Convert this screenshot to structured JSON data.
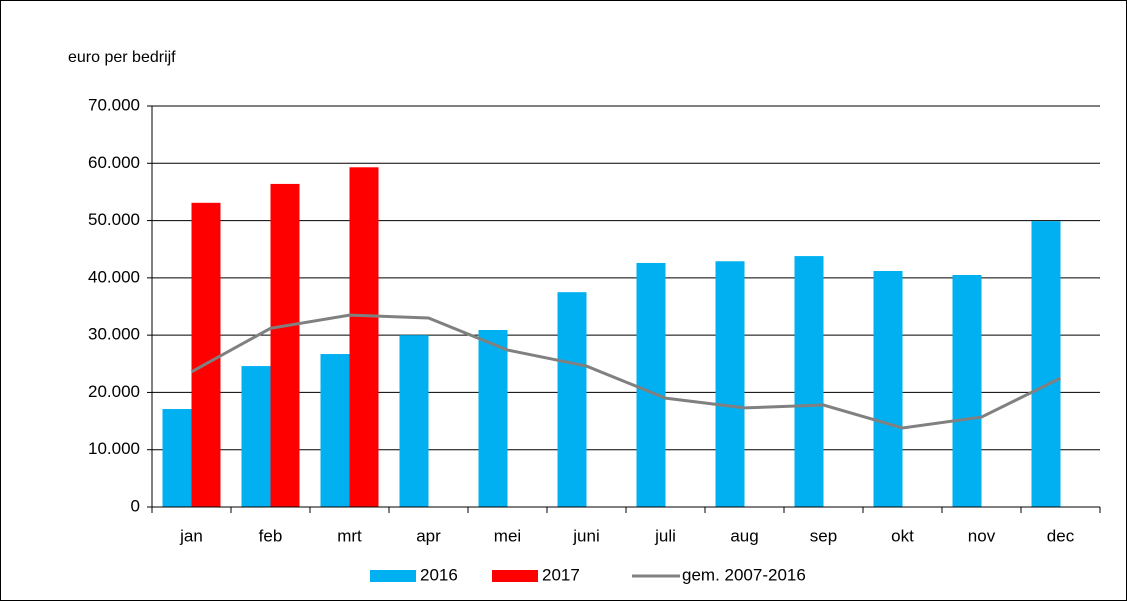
{
  "chart_data": {
    "type": "bar",
    "y_axis_label": "euro per bedrijf",
    "categories": [
      "jan",
      "feb",
      "mrt",
      "apr",
      "mei",
      "juni",
      "juli",
      "aug",
      "sep",
      "okt",
      "nov",
      "dec"
    ],
    "series": [
      {
        "name": "2016",
        "color": "#00b0f0",
        "type": "bar",
        "values": [
          17100,
          24600,
          26700,
          30000,
          30900,
          37500,
          42600,
          42900,
          43800,
          41200,
          40500,
          49900
        ]
      },
      {
        "name": "2017",
        "color": "#ff0000",
        "type": "bar",
        "values": [
          53100,
          56400,
          59300,
          null,
          null,
          null,
          null,
          null,
          null,
          null,
          null,
          null
        ]
      },
      {
        "name": "gem. 2007-2016",
        "color": "#808080",
        "type": "line",
        "values": [
          23600,
          31200,
          33500,
          33000,
          27400,
          24600,
          19000,
          17300,
          17800,
          13800,
          15700,
          22500
        ]
      }
    ],
    "ylim": [
      0,
      70000
    ],
    "yticks": [
      0,
      {
        "value": 10000,
        "label": "10.000"
      },
      {
        "value": 20000,
        "label": "20.000"
      },
      {
        "value": 30000,
        "label": "30.000"
      },
      {
        "value": 40000,
        "label": "40.000"
      },
      {
        "value": 50000,
        "label": "50.000"
      },
      {
        "value": 60000,
        "label": "60.000"
      },
      {
        "value": 70000,
        "label": "70.000"
      }
    ],
    "grid": true,
    "legend": "bottom"
  }
}
